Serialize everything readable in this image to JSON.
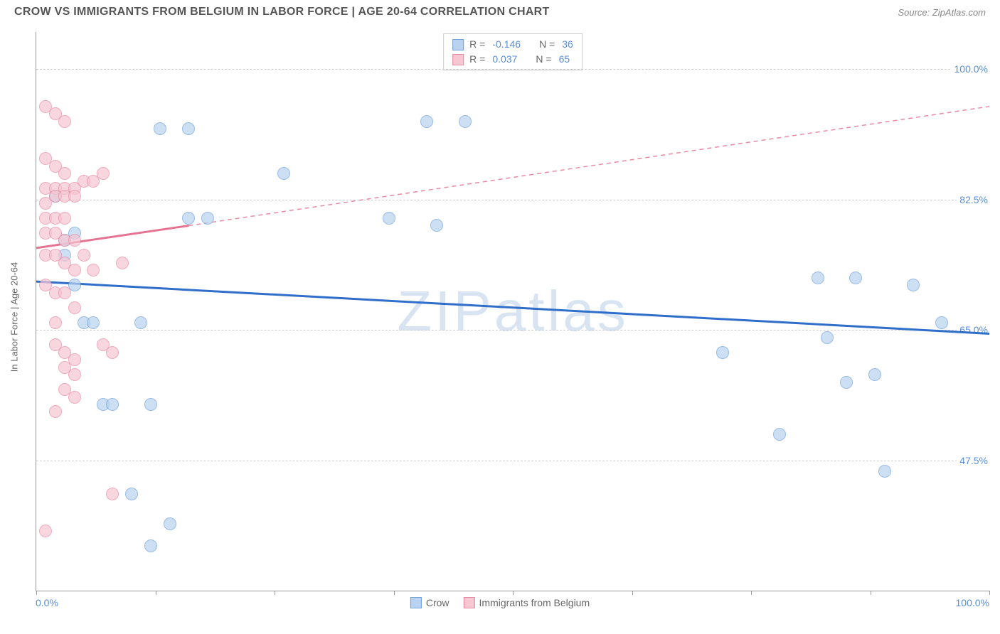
{
  "header": {
    "title": "CROW VS IMMIGRANTS FROM BELGIUM IN LABOR FORCE | AGE 20-64 CORRELATION CHART",
    "source": "Source: ZipAtlas.com"
  },
  "watermark": "ZIPatlas",
  "chart": {
    "type": "scatter",
    "background_color": "#ffffff",
    "grid_color": "#cccccc",
    "axis_color": "#999999",
    "value_text_color": "#5b8fd6",
    "label_text_color": "#666666",
    "y_axis_label": "In Labor Force | Age 20-64",
    "xlim": [
      0,
      100
    ],
    "ylim": [
      30,
      105
    ],
    "x_ticks": [
      0,
      12.5,
      25,
      37.5,
      50,
      62.5,
      75,
      87.5,
      100
    ],
    "y_gridlines": [
      47.5,
      65.0,
      82.5,
      100.0
    ],
    "y_tick_labels": [
      "47.5%",
      "65.0%",
      "82.5%",
      "100.0%"
    ],
    "x_tick_lo": "0.0%",
    "x_tick_hi": "100.0%",
    "point_radius": 9,
    "point_opacity": 0.7,
    "series": [
      {
        "name": "Crow",
        "fill_color": "#b9d2ef",
        "stroke_color": "#6fa0d8",
        "r_label": "R =",
        "r_value": "-0.146",
        "n_label": "N =",
        "n_value": "36",
        "trend": {
          "x1": 0,
          "y1": 71.5,
          "x2": 100,
          "y2": 64.5,
          "color": "#2f6fc9",
          "width": 3,
          "dash": "none"
        },
        "points": [
          [
            2,
            83
          ],
          [
            3,
            77
          ],
          [
            3,
            75
          ],
          [
            4,
            78
          ],
          [
            4,
            71
          ],
          [
            5,
            66
          ],
          [
            6,
            66
          ],
          [
            7,
            55
          ],
          [
            8,
            55
          ],
          [
            10,
            43
          ],
          [
            11,
            66
          ],
          [
            12,
            36
          ],
          [
            12,
            55
          ],
          [
            13,
            92
          ],
          [
            14,
            39
          ],
          [
            16,
            92
          ],
          [
            16,
            80
          ],
          [
            18,
            80
          ],
          [
            26,
            86
          ],
          [
            37,
            80
          ],
          [
            41,
            93
          ],
          [
            42,
            79
          ],
          [
            45,
            93
          ],
          [
            72,
            62
          ],
          [
            78,
            51
          ],
          [
            82,
            72
          ],
          [
            83,
            64
          ],
          [
            85,
            58
          ],
          [
            86,
            72
          ],
          [
            88,
            59
          ],
          [
            89,
            46
          ],
          [
            92,
            71
          ],
          [
            95,
            66
          ]
        ]
      },
      {
        "name": "Immigrants from Belgium",
        "fill_color": "#f6c6d2",
        "stroke_color": "#e88aa2",
        "r_label": "R =",
        "r_value": "0.037",
        "n_label": "N =",
        "n_value": "65",
        "trend_solid": {
          "x1": 0,
          "y1": 76,
          "x2": 16,
          "y2": 79,
          "color": "#e57393",
          "width": 3,
          "dash": "none"
        },
        "trend_dash": {
          "x1": 16,
          "y1": 79,
          "x2": 100,
          "y2": 95,
          "color": "#e88aa2",
          "width": 1.5,
          "dash": "6 5"
        },
        "points": [
          [
            1,
            95
          ],
          [
            2,
            94
          ],
          [
            3,
            93
          ],
          [
            1,
            88
          ],
          [
            2,
            87
          ],
          [
            3,
            86
          ],
          [
            1,
            84
          ],
          [
            2,
            84
          ],
          [
            3,
            84
          ],
          [
            4,
            84
          ],
          [
            1,
            82
          ],
          [
            2,
            83
          ],
          [
            3,
            83
          ],
          [
            4,
            83
          ],
          [
            5,
            85
          ],
          [
            6,
            85
          ],
          [
            7,
            86
          ],
          [
            1,
            80
          ],
          [
            2,
            80
          ],
          [
            3,
            80
          ],
          [
            1,
            78
          ],
          [
            2,
            78
          ],
          [
            3,
            77
          ],
          [
            4,
            77
          ],
          [
            1,
            75
          ],
          [
            2,
            75
          ],
          [
            3,
            74
          ],
          [
            4,
            73
          ],
          [
            5,
            75
          ],
          [
            6,
            73
          ],
          [
            9,
            74
          ],
          [
            1,
            71
          ],
          [
            2,
            70
          ],
          [
            3,
            70
          ],
          [
            4,
            68
          ],
          [
            2,
            66
          ],
          [
            2,
            63
          ],
          [
            3,
            62
          ],
          [
            3,
            60
          ],
          [
            4,
            61
          ],
          [
            4,
            59
          ],
          [
            3,
            57
          ],
          [
            4,
            56
          ],
          [
            7,
            63
          ],
          [
            8,
            62
          ],
          [
            2,
            54
          ],
          [
            1,
            38
          ],
          [
            8,
            43
          ]
        ]
      }
    ],
    "legend_bottom": [
      {
        "swatch_fill": "#b9d2ef",
        "swatch_stroke": "#6fa0d8",
        "label": "Crow"
      },
      {
        "swatch_fill": "#f6c6d2",
        "swatch_stroke": "#e88aa2",
        "label": "Immigrants from Belgium"
      }
    ]
  }
}
